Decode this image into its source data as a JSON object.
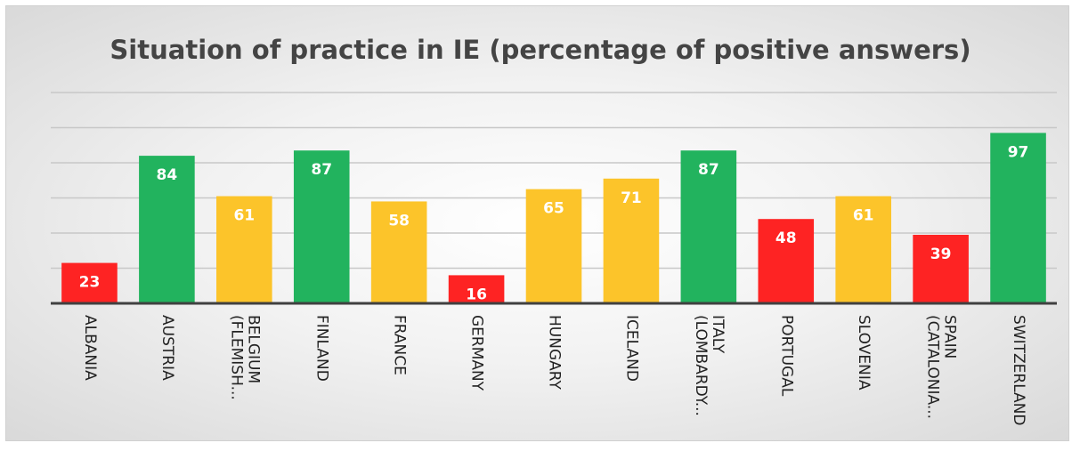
{
  "chart_data": {
    "type": "bar",
    "title": "Situation of practice in IE (percentage of positive answers)",
    "categories": [
      "ALBANIA",
      "AUSTRIA",
      "BELGIUM (FLEMISH...",
      "FINLAND",
      "FRANCE",
      "GERMANY",
      "HUNGARY",
      "ICELAND",
      "ITALY (LOMBARDY...",
      "PORTUGAL",
      "SLOVENIA",
      "SPAIN (CATALONIA...",
      "SWITZERLAND"
    ],
    "values": [
      23,
      84,
      61,
      87,
      58,
      16,
      65,
      71,
      87,
      48,
      61,
      39,
      97
    ],
    "colors": [
      "#fe2323",
      "#22b35e",
      "#fcc42a",
      "#22b35e",
      "#fcc42a",
      "#fe2323",
      "#fcc42a",
      "#fcc42a",
      "#22b35e",
      "#fe2323",
      "#fcc42a",
      "#fe2323",
      "#22b35e"
    ],
    "ylim": [
      0,
      120
    ],
    "yticks": [
      0,
      20,
      40,
      60,
      80,
      100,
      120
    ],
    "grid": true
  }
}
